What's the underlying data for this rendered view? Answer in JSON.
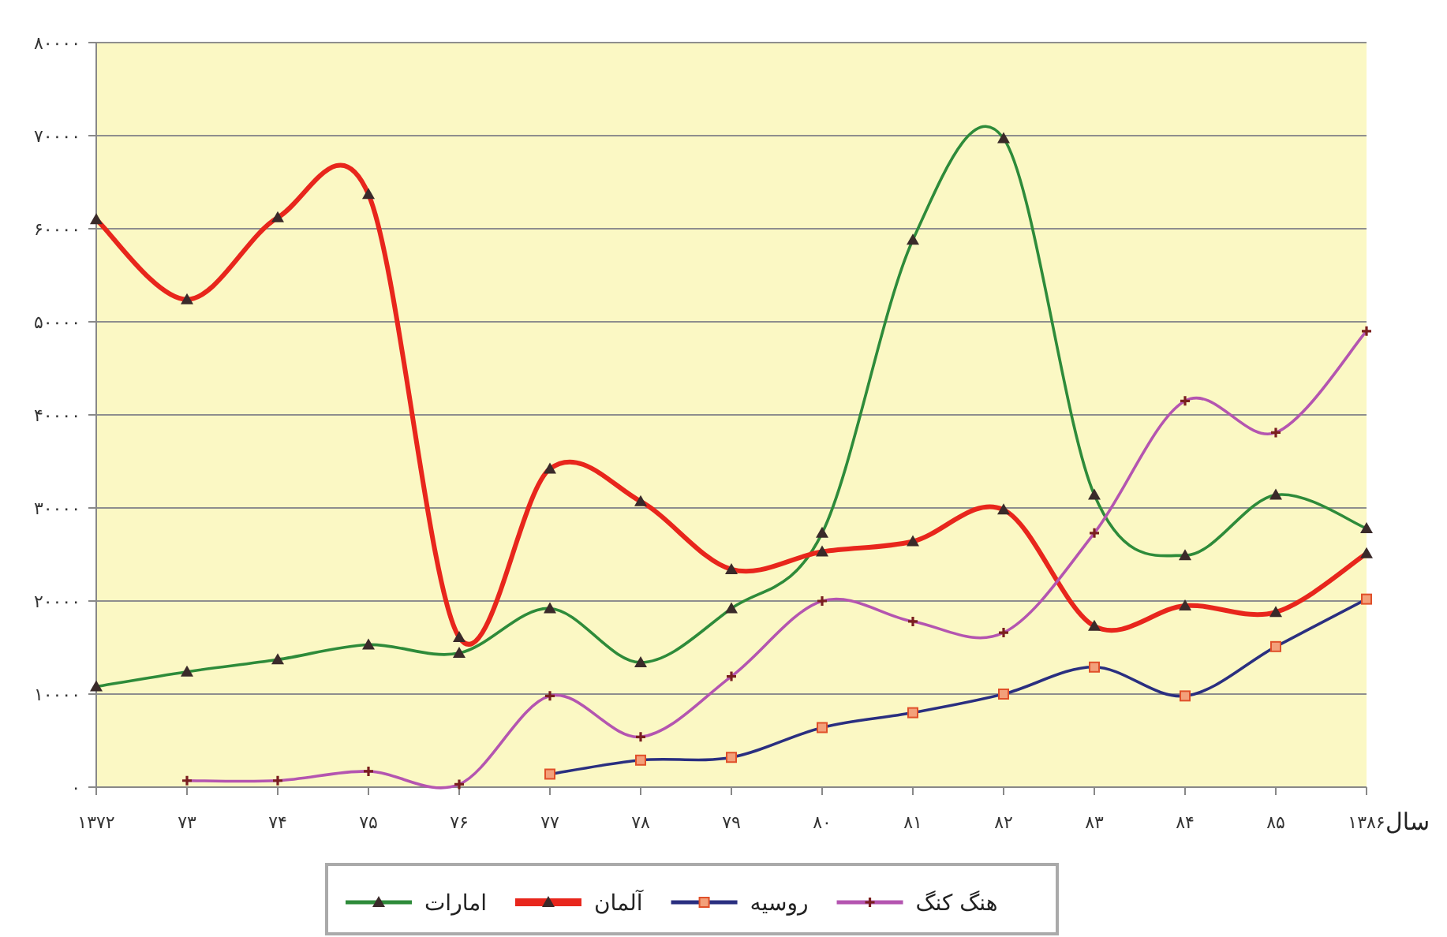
{
  "chart_data": {
    "type": "line",
    "xlabel": "سال",
    "categories": [
      "۱۳۷۲",
      "۷۳",
      "۷۴",
      "۷۵",
      "۷۶",
      "۷۷",
      "۷۸",
      "۷۹",
      "۸۰",
      "۸۱",
      "۸۲",
      "۸۳",
      "۸۴",
      "۸۵",
      "۱۳۸۶"
    ],
    "series": [
      {
        "name": "امارات",
        "color": "#2e8b3a",
        "marker": "triangle",
        "values": [
          10800,
          12400,
          13700,
          15300,
          14400,
          19200,
          13400,
          19200,
          27300,
          58800,
          69700,
          31400,
          24900,
          31400,
          27800
        ]
      },
      {
        "name": "آلمان",
        "color": "#e8261c",
        "marker": "triangle",
        "values": [
          61000,
          52400,
          61200,
          63700,
          16100,
          34200,
          30700,
          23400,
          25300,
          26400,
          29800,
          17300,
          19500,
          18800,
          25100
        ]
      },
      {
        "name": "روسیه",
        "color": "#2a2f80",
        "marker": "square",
        "values": [
          null,
          null,
          null,
          null,
          null,
          1400,
          2900,
          3200,
          6400,
          8000,
          10000,
          12900,
          9800,
          15100,
          20200
        ]
      },
      {
        "name": "هنگ کنگ",
        "color": "#b455b0",
        "marker": "cross",
        "values": [
          null,
          700,
          700,
          1700,
          300,
          9800,
          5400,
          11900,
          20000,
          17800,
          16600,
          27300,
          41500,
          38100,
          49000
        ]
      }
    ],
    "ylim": [
      0,
      80000
    ],
    "yticks": [
      {
        "value": 0,
        "label": "۰"
      },
      {
        "value": 10000,
        "label": "۱۰۰۰۰"
      },
      {
        "value": 20000,
        "label": "۲۰۰۰۰"
      },
      {
        "value": 30000,
        "label": "۳۰۰۰۰"
      },
      {
        "value": 40000,
        "label": "۴۰۰۰۰"
      },
      {
        "value": 50000,
        "label": "۵۰۰۰۰"
      },
      {
        "value": 60000,
        "label": "۶۰۰۰۰"
      },
      {
        "value": 70000,
        "label": "۷۰۰۰۰"
      },
      {
        "value": 80000,
        "label": "۸۰۰۰۰"
      }
    ],
    "grid": "y",
    "legend": "bottom"
  }
}
